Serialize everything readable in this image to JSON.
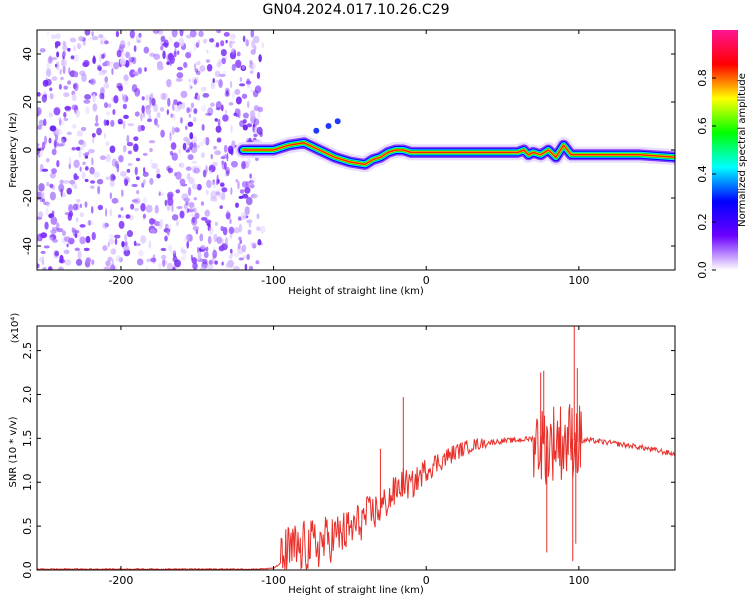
{
  "title": "GN04.2024.017.10.26.C29",
  "chart_data": [
    {
      "type": "heatmap",
      "panel": "top",
      "title": "GN04.2024.017.10.26.C29",
      "xlabel": "Height of straight line (km)",
      "ylabel": "Frequency (Hz)",
      "xlim": [
        -255,
        163
      ],
      "ylim": [
        -50,
        50
      ],
      "xticks": [
        -200,
        -100,
        0,
        100
      ],
      "yticks": [
        -40,
        -20,
        0,
        20,
        40
      ],
      "grid": false,
      "ridge": {
        "x": [
          -120,
          -110,
          -100,
          -90,
          -80,
          -70,
          -60,
          -50,
          -40,
          -35,
          -30,
          -25,
          -20,
          -15,
          -10,
          0,
          20,
          40,
          60,
          64,
          67,
          70,
          75,
          80,
          85,
          90,
          95,
          100,
          120,
          140,
          163
        ],
        "y": [
          0,
          0,
          0,
          2,
          3,
          0,
          -3,
          -5,
          -6,
          -4,
          -3,
          -1,
          0,
          0,
          -1,
          -1,
          -1,
          -1,
          -1,
          0,
          -2,
          -1,
          -2,
          0,
          -3,
          2,
          -2,
          -2,
          -2,
          -2,
          -3
        ]
      },
      "noise_region": [
        -255,
        -115
      ],
      "colorbar": {
        "label": "Normalized spectral amplitude",
        "ticks": [
          0.0,
          0.2,
          0.4,
          0.6,
          0.8
        ],
        "range": [
          0,
          1
        ],
        "stops": [
          "#ffffff",
          "#6a00ff",
          "#0000ff",
          "#00ffff",
          "#00ff00",
          "#ffff00",
          "#ff0000",
          "#ff1493"
        ]
      }
    },
    {
      "type": "line",
      "panel": "bottom",
      "xlabel": "Height of straight line (km)",
      "ylabel": "SNR (10 * v/v)",
      "yscale_label": "(x10⁴)",
      "xlim": [
        -255,
        163
      ],
      "ylim": [
        0,
        2.78
      ],
      "xticks": [
        -200,
        -100,
        0,
        100
      ],
      "yticks": [
        0.0,
        0.5,
        1.0,
        1.5,
        2.0,
        2.5
      ],
      "grid": false,
      "series": [
        {
          "color": "#e8302b",
          "x": [
            -255,
            -200,
            -150,
            -110,
            -100,
            -95,
            -90,
            -80,
            -70,
            -60,
            -50,
            -40,
            -30,
            -25,
            -20,
            -15,
            -10,
            -5,
            0,
            10,
            20,
            30,
            40,
            50,
            60,
            70,
            75,
            80,
            85,
            90,
            95,
            100,
            105,
            120,
            140,
            163
          ],
          "y": [
            0.01,
            0.01,
            0.01,
            0.01,
            0.02,
            0.08,
            0.2,
            0.25,
            0.3,
            0.38,
            0.45,
            0.6,
            0.7,
            0.8,
            0.9,
            1.0,
            0.95,
            1.05,
            1.15,
            1.25,
            1.35,
            1.42,
            1.45,
            1.47,
            1.48,
            1.5,
            1.45,
            1.4,
            1.5,
            1.45,
            1.5,
            1.45,
            1.48,
            1.45,
            1.4,
            1.32
          ]
        }
      ],
      "spikes": {
        "x": [
          -30,
          -15,
          75,
          77,
          79,
          96,
          97,
          98,
          99
        ],
        "y": [
          1.38,
          1.97,
          2.25,
          2.27,
          0.2,
          0.1,
          2.78,
          0.3,
          2.3
        ]
      }
    }
  ]
}
